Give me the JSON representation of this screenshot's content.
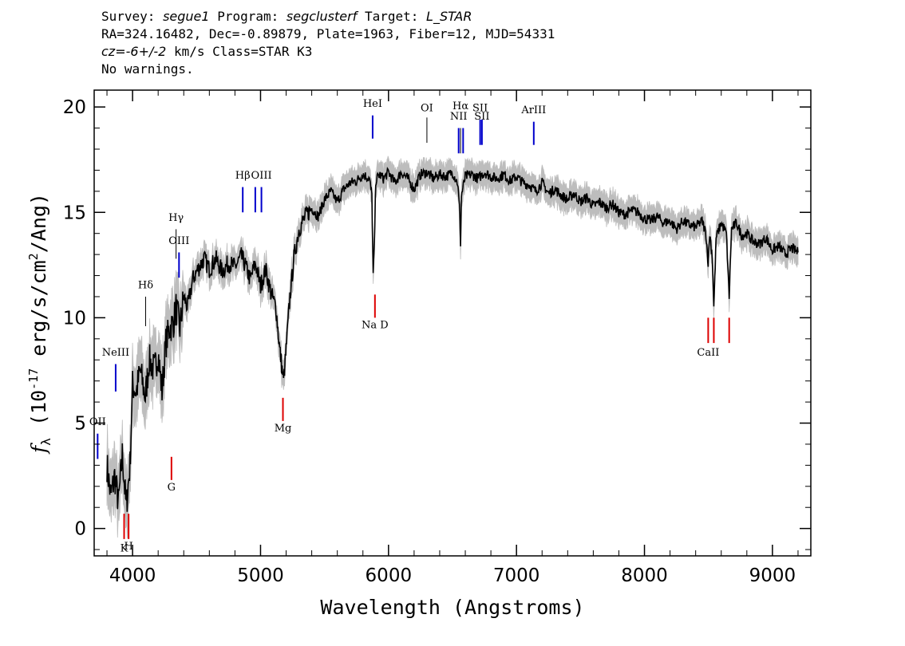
{
  "header": {
    "survey_label": "Survey:",
    "survey": "segue1",
    "program_label": "Program:",
    "program": "segclusterf",
    "target_label": "Target:",
    "target": "L_STAR",
    "line2": "RA=324.16482, Dec=-0.89879, Plate=1963, Fiber=12, MJD=54331",
    "cz_label": "cz",
    "cz_value": "=-6+/-2",
    "cz_unit": "km/s Class=STAR K3",
    "line4": "No warnings."
  },
  "chart_data": {
    "type": "line",
    "xlabel": "Wavelength (Angstroms)",
    "ylabel": "f_λ (10^-17 erg/s/cm^2/Ang)",
    "ylabel_parts": {
      "f": "f",
      "lambda": "λ",
      "pre": "(10",
      "exp": "-17",
      "mid": " erg/s/cm",
      "exp2": "2",
      "post": "/Ang)"
    },
    "xlim": [
      3700,
      9300
    ],
    "ylim": [
      -1.3,
      20.8
    ],
    "xticks": [
      4000,
      5000,
      6000,
      7000,
      8000,
      9000
    ],
    "yticks": [
      0,
      5,
      10,
      15,
      20
    ],
    "grid": false,
    "colors": {
      "spectrum": "#000000",
      "error": "#bdbdbd",
      "emission": "#0000cc",
      "absorption": "#dd0000",
      "minor_line": "#000000"
    },
    "spectrum": {
      "x": [
        3800,
        3830,
        3860,
        3890,
        3920,
        3950,
        3980,
        4000,
        4030,
        4060,
        4100,
        4130,
        4170,
        4200,
        4230,
        4260,
        4290,
        4320,
        4340,
        4370,
        4400,
        4430,
        4470,
        4500,
        4530,
        4560,
        4600,
        4650,
        4700,
        4750,
        4800,
        4850,
        4880,
        4920,
        4960,
        5000,
        5040,
        5080,
        5120,
        5150,
        5180,
        5200,
        5230,
        5260,
        5300,
        5350,
        5400,
        5450,
        5500,
        5550,
        5600,
        5650,
        5700,
        5750,
        5800,
        5850,
        5870,
        5880,
        5890,
        5900,
        5930,
        5960,
        6000,
        6050,
        6100,
        6150,
        6200,
        6250,
        6300,
        6350,
        6400,
        6450,
        6500,
        6540,
        6555,
        6563,
        6570,
        6600,
        6650,
        6700,
        6750,
        6800,
        6850,
        6900,
        6950,
        7000,
        7050,
        7100,
        7150,
        7200,
        7250,
        7300,
        7350,
        7400,
        7450,
        7500,
        7550,
        7600,
        7650,
        7700,
        7750,
        7800,
        7850,
        7900,
        7950,
        8000,
        8050,
        8100,
        8150,
        8200,
        8250,
        8300,
        8350,
        8400,
        8450,
        8480,
        8498,
        8510,
        8530,
        8542,
        8560,
        8600,
        8640,
        8662,
        8680,
        8720,
        8760,
        8800,
        8850,
        8900,
        8950,
        9000,
        9050,
        9100,
        9150,
        9200
      ],
      "y": [
        3.0,
        1.5,
        2.5,
        1.2,
        3.5,
        1.0,
        3.0,
        6.8,
        6.5,
        7.5,
        6.2,
        8.0,
        7.5,
        8.3,
        6.5,
        8.8,
        9.5,
        9.8,
        10.5,
        9.5,
        11.0,
        10.5,
        11.8,
        12.2,
        12.5,
        12.8,
        12.3,
        12.8,
        12.2,
        12.6,
        12.4,
        12.9,
        12.5,
        11.8,
        12.6,
        11.5,
        12.3,
        11.2,
        10.5,
        8.5,
        7.0,
        8.5,
        11.0,
        12.8,
        14.2,
        14.8,
        15.2,
        14.8,
        15.6,
        16.0,
        15.5,
        16.1,
        16.4,
        16.5,
        16.8,
        16.6,
        15.8,
        12.0,
        13.5,
        16.5,
        16.8,
        16.6,
        16.9,
        16.4,
        16.9,
        16.6,
        16.1,
        16.8,
        16.9,
        16.6,
        16.8,
        16.7,
        16.9,
        16.4,
        15.2,
        13.5,
        15.8,
        16.7,
        16.8,
        16.6,
        16.9,
        16.7,
        16.6,
        16.8,
        16.5,
        16.7,
        16.4,
        16.3,
        16.0,
        16.4,
        15.9,
        16.1,
        15.8,
        15.6,
        15.9,
        15.5,
        15.7,
        15.3,
        15.5,
        15.2,
        15.4,
        15.0,
        14.9,
        15.1,
        15.0,
        14.7,
        14.6,
        14.8,
        14.5,
        14.6,
        14.2,
        14.6,
        14.4,
        14.3,
        14.6,
        14.0,
        12.6,
        14.0,
        12.9,
        10.5,
        13.8,
        14.5,
        14.0,
        11.0,
        14.2,
        14.5,
        13.9,
        14.0,
        13.6,
        13.5,
        13.8,
        13.2,
        13.4,
        13.0,
        13.3,
        13.1
      ],
      "error_halfwidth": 0.45
    },
    "lines": [
      {
        "name": "OII",
        "x": 3727,
        "type": "emission",
        "y1": 3.3,
        "y2": 4.5,
        "label_y": 4.9
      },
      {
        "name": "NeIII",
        "x": 3868,
        "type": "emission",
        "y1": 6.5,
        "y2": 7.8,
        "label_y": 8.2
      },
      {
        "name": "Hδ",
        "x": 4102,
        "type": "minor",
        "y1": 9.6,
        "y2": 11.0,
        "label_y": 11.4
      },
      {
        "name": "Hγ",
        "x": 4340,
        "type": "minor",
        "y1": 12.8,
        "y2": 14.2,
        "label_y": 14.6
      },
      {
        "name": "OIII",
        "x": 4363,
        "type": "emission",
        "y1": 11.9,
        "y2": 13.1,
        "label_y": 13.5
      },
      {
        "name": "Hβ",
        "x": 4861,
        "type": "emission",
        "y1": 15.0,
        "y2": 16.2,
        "label_y": 16.6
      },
      {
        "name": "OIII",
        "x": 4959,
        "type": "emission",
        "y1": 15.0,
        "y2": 16.2,
        "label_y": null
      },
      {
        "name": "OIII",
        "x": 5007,
        "type": "emission",
        "y1": 15.0,
        "y2": 16.2,
        "label_y": 16.6
      },
      {
        "name": "HeI",
        "x": 5876,
        "type": "emission",
        "y1": 18.5,
        "y2": 19.6,
        "label_y": 20.0
      },
      {
        "name": "OI",
        "x": 6300,
        "type": "minor",
        "y1": 18.3,
        "y2": 19.5,
        "label_y": 19.8
      },
      {
        "name": "NII",
        "x": 6548,
        "type": "emission",
        "y1": 17.8,
        "y2": 19.0,
        "label_y": 19.4
      },
      {
        "name": "Hα",
        "x": 6563,
        "type": "minor",
        "y1": 17.8,
        "y2": 19.0,
        "label_y": 19.9
      },
      {
        "name": "NII",
        "x": 6583,
        "type": "emission",
        "y1": 17.8,
        "y2": 19.0,
        "label_y": null
      },
      {
        "name": "SII",
        "x": 6716,
        "type": "emission",
        "y1": 18.2,
        "y2": 19.4,
        "label_y": 19.8
      },
      {
        "name": "SII",
        "x": 6730,
        "type": "emission",
        "y1": 18.2,
        "y2": 19.4,
        "label_y": 19.4
      },
      {
        "name": "ArIII",
        "x": 7135,
        "type": "emission",
        "y1": 18.2,
        "y2": 19.3,
        "label_y": 19.7
      },
      {
        "name": "K",
        "x": 3934,
        "type": "absorption",
        "y1": -0.5,
        "y2": 0.7,
        "label_y": -1.1
      },
      {
        "name": "H",
        "x": 3969,
        "type": "absorption",
        "y1": -0.5,
        "y2": 0.7,
        "label_y": -1.0
      },
      {
        "name": "G",
        "x": 4304,
        "type": "absorption",
        "y1": 2.3,
        "y2": 3.4,
        "label_y": 1.8
      },
      {
        "name": "Mg",
        "x": 5175,
        "type": "absorption",
        "y1": 5.1,
        "y2": 6.2,
        "label_y": 4.6
      },
      {
        "name": "Na D",
        "x": 5894,
        "type": "absorption",
        "y1": 10.0,
        "y2": 11.1,
        "label_y": 9.5
      },
      {
        "name": "CaII",
        "x": 8498,
        "type": "absorption",
        "y1": 8.8,
        "y2": 10.0,
        "label_y": 8.2
      },
      {
        "name": "CaII",
        "x": 8542,
        "type": "absorption",
        "y1": 8.8,
        "y2": 10.0,
        "label_y": null
      },
      {
        "name": "CaII",
        "x": 8662,
        "type": "absorption",
        "y1": 8.8,
        "y2": 10.0,
        "label_y": null
      }
    ]
  }
}
